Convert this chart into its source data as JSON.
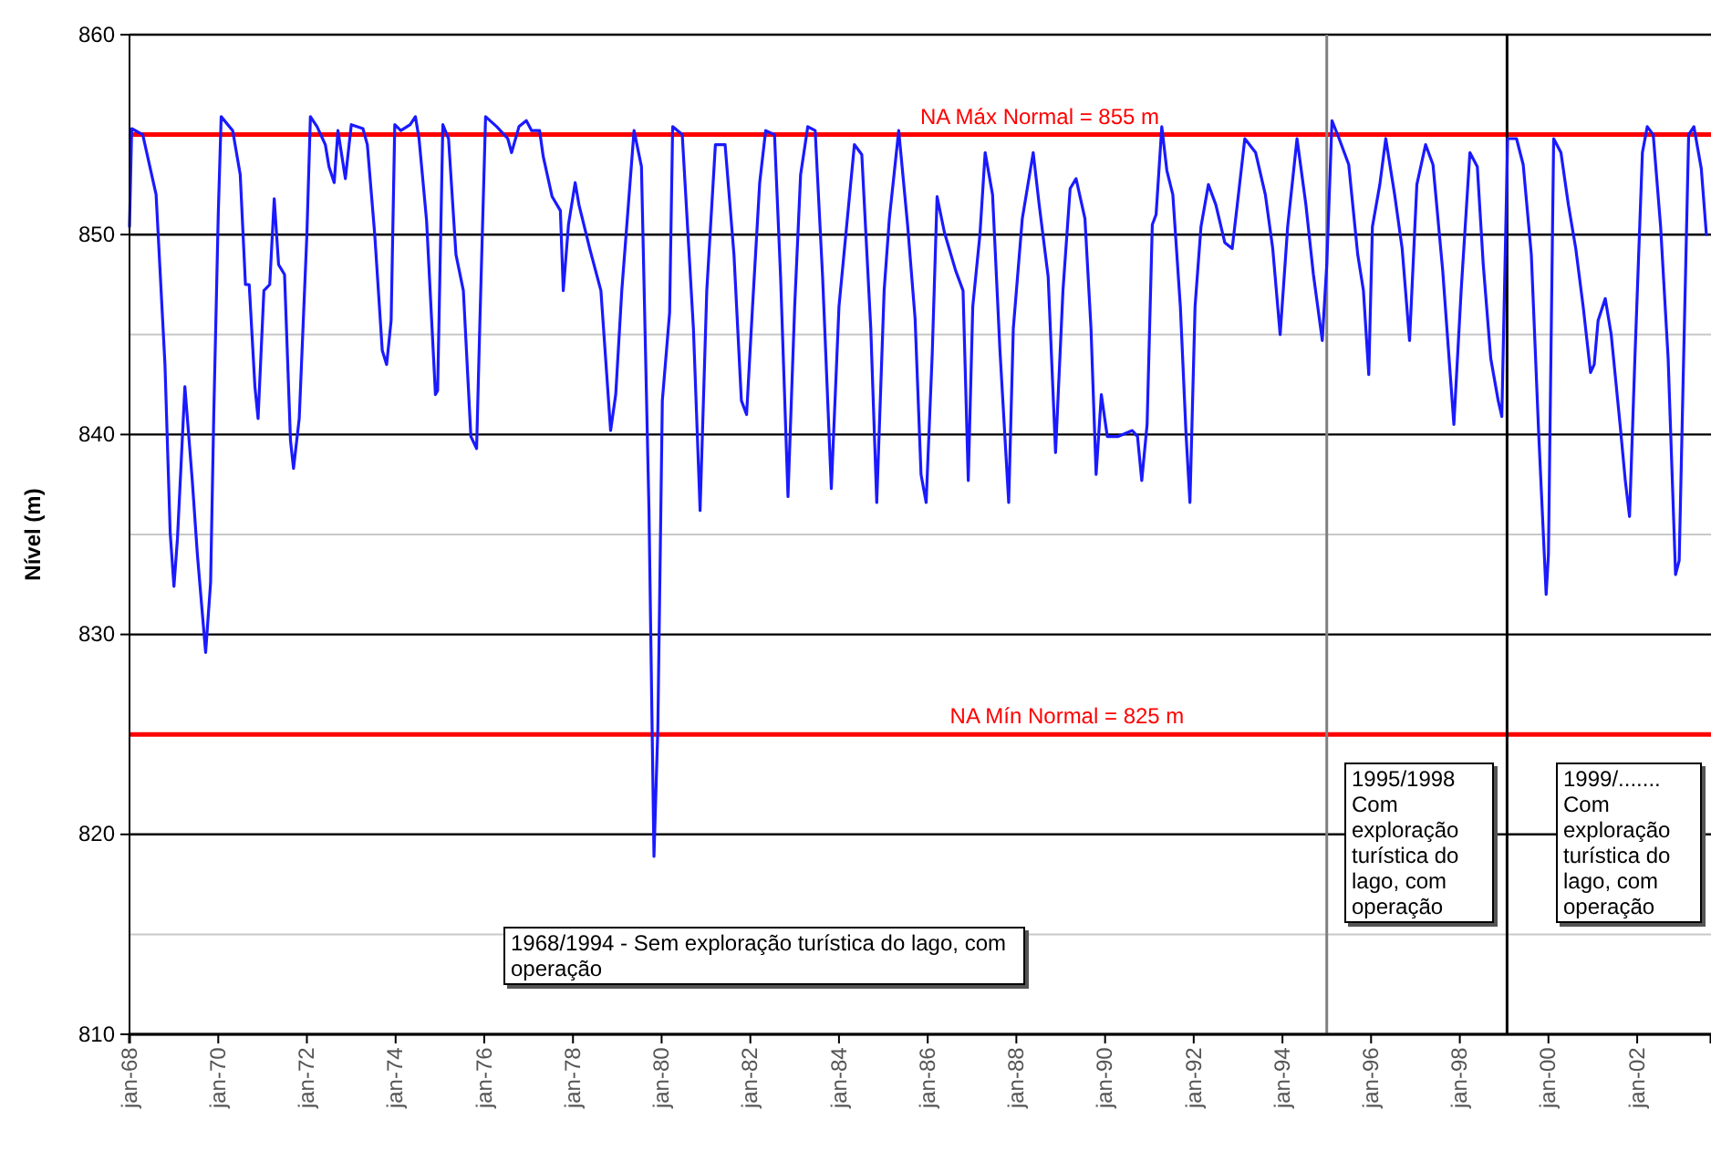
{
  "chart_data": {
    "type": "line",
    "ylabel": "Nível (m)",
    "ylim": [
      810,
      860
    ],
    "yticks": [
      810,
      {
        "value": 815,
        "label": null
      },
      820,
      830,
      {
        "value": 835,
        "label": null
      },
      840,
      {
        "value": 845,
        "label": null
      },
      850,
      860
    ],
    "xlim": [
      "1968-01-01",
      "2003-09-01"
    ],
    "xticks": [
      {
        "value": "1968-01-01",
        "label": "jan-68"
      },
      {
        "value": "1970-01-01",
        "label": "jan-70"
      },
      {
        "value": "1972-01-01",
        "label": "jan-72"
      },
      {
        "value": "1974-01-01",
        "label": "jan-74"
      },
      {
        "value": "1976-01-01",
        "label": "jan-76"
      },
      {
        "value": "1978-01-01",
        "label": "jan-78"
      },
      {
        "value": "1980-01-01",
        "label": "jan-80"
      },
      {
        "value": "1982-01-01",
        "label": "jan-82"
      },
      {
        "value": "1984-01-01",
        "label": "jan-84"
      },
      {
        "value": "1986-01-01",
        "label": "jan-86"
      },
      {
        "value": "1988-01-01",
        "label": "jan-88"
      },
      {
        "value": "1990-01-01",
        "label": "jan-90"
      },
      {
        "value": "1992-01-01",
        "label": "jan-92"
      },
      {
        "value": "1994-01-01",
        "label": "jan-94"
      },
      {
        "value": "1996-01-01",
        "label": "jan-96"
      },
      {
        "value": "1998-01-01",
        "label": "jan-98"
      },
      {
        "value": "2000-01-01",
        "label": "jan-00"
      },
      {
        "value": "2002-01-01",
        "label": "jan-02"
      }
    ],
    "grid": "y",
    "marker": "none",
    "line_style": "solid",
    "ref_lines": [
      {
        "axis": "y",
        "value": 855,
        "label": "NA Máx Normal = 855 m",
        "color": "#ff0000"
      },
      {
        "axis": "y",
        "value": 825,
        "label": "NA Mín Normal = 825 m",
        "color": "#ff0000"
      },
      {
        "axis": "x",
        "value": "1995-01-01",
        "color": "#808080"
      },
      {
        "axis": "x",
        "value": "1999-01-25",
        "color": "#000000"
      }
    ],
    "annotations": [
      "1968/1994 - Sem exploração turística do lago, com operação",
      "1995/1998 Com exploração turística do lago, com operação",
      "1999/....... Com exploração turística do lago, com operação"
    ],
    "series": [
      {
        "color": "#1a1aff",
        "x": [
          "1968-01-01",
          "1968-01-19",
          "1968-04-19",
          "1968-08-07",
          "1968-10-19",
          "1968-12-01",
          "1969-01-01",
          "1969-01-30",
          "1969-04-01",
          "1969-06-01",
          "1969-07-13",
          "1969-09-19",
          "1969-10-30",
          "1969-11-25",
          "1970-01-01",
          "1970-01-25",
          "1970-04-30",
          "1970-07-01",
          "1970-08-13",
          "1970-09-13",
          "1970-10-30",
          "1970-11-25",
          "1971-01-12",
          "1971-03-01",
          "1971-04-07",
          "1971-05-13",
          "1971-07-01",
          "1971-08-19",
          "1971-09-13",
          "1971-10-30",
          "1972-01-01",
          "1972-01-30",
          "1972-03-25",
          "1972-06-01",
          "1972-07-01",
          "1972-08-13",
          "1972-09-13",
          "1972-11-13",
          "1973-01-01",
          "1973-04-07",
          "1973-05-13",
          "1973-07-13",
          "1973-09-13",
          "1973-10-19",
          "1973-11-25",
          "1973-12-25",
          "1974-02-13",
          "1974-05-01",
          "1974-06-13",
          "1974-07-13",
          "1974-09-13",
          "1974-11-25",
          "1974-12-13",
          "1975-01-25",
          "1975-03-13",
          "1975-05-13",
          "1975-07-13",
          "1975-09-13",
          "1975-10-30",
          "1975-11-25",
          "1976-01-12",
          "1976-04-13",
          "1976-07-13",
          "1976-08-13",
          "1976-10-13",
          "1976-12-13",
          "1977-01-25",
          "1977-04-01",
          "1977-05-01",
          "1977-07-13",
          "1977-09-19",
          "1977-10-13",
          "1977-11-25",
          "1978-01-19",
          "1978-02-19",
          "1978-05-19",
          "1978-08-19",
          "1978-11-07",
          "1978-12-19",
          "1979-02-07",
          "1979-05-19",
          "1979-07-19",
          "1979-09-19",
          "1979-10-30",
          "1979-12-01",
          "1980-01-07",
          "1980-03-07",
          "1980-04-01",
          "1980-06-19",
          "1980-09-19",
          "1980-11-13",
          "1981-01-07",
          "1981-03-19",
          "1981-06-07",
          "1981-08-19",
          "1981-10-19",
          "1981-12-01",
          "1982-01-19",
          "1982-03-19",
          "1982-05-07",
          "1982-07-19",
          "1982-09-07",
          "1982-11-07",
          "1983-01-01",
          "1983-02-19",
          "1983-04-19",
          "1983-06-19",
          "1983-08-19",
          "1983-10-30",
          "1984-01-01",
          "1984-05-07",
          "1984-07-07",
          "1984-09-19",
          "1984-11-07",
          "1985-01-07",
          "1985-02-19",
          "1985-05-07",
          "1985-07-19",
          "1985-09-19",
          "1985-11-07",
          "1985-12-19",
          "1986-02-07",
          "1986-03-19",
          "1986-05-19",
          "1986-08-19",
          "1986-10-19",
          "1986-12-01",
          "1987-01-07",
          "1987-03-07",
          "1987-04-19",
          "1987-06-19",
          "1987-08-19",
          "1987-10-30",
          "1987-12-07",
          "1988-02-19",
          "1988-05-19",
          "1988-07-07",
          "1988-09-19",
          "1988-11-19",
          "1989-01-19",
          "1989-03-19",
          "1989-05-07",
          "1989-07-19",
          "1989-09-07",
          "1989-10-19",
          "1989-12-01",
          "1990-01-19",
          "1990-04-19",
          "1990-08-13",
          "1990-09-25",
          "1990-10-30",
          "1990-12-13",
          "1991-01-25",
          "1991-02-25",
          "1991-04-13",
          "1991-05-25",
          "1991-07-13",
          "1991-09-13",
          "1991-10-30",
          "1991-12-01",
          "1992-01-12",
          "1992-03-01",
          "1992-05-01",
          "1992-07-01",
          "1992-09-13",
          "1992-11-13",
          "1992-12-25",
          "1993-02-25",
          "1993-05-25",
          "1993-08-13",
          "1993-10-13",
          "1993-12-13",
          "1994-02-13",
          "1994-05-01",
          "1994-07-13",
          "1994-09-13",
          "1994-11-25",
          "1995-01-01",
          "1995-02-13",
          "1995-04-13",
          "1995-07-01",
          "1995-09-13",
          "1995-10-30",
          "1995-12-13",
          "1996-01-12",
          "1996-03-13",
          "1996-05-01",
          "1996-07-13",
          "1996-09-13",
          "1996-11-13",
          "1997-01-12",
          "1997-03-25",
          "1997-05-25",
          "1997-08-13",
          "1997-11-13",
          "1998-01-12",
          "1998-03-25",
          "1998-05-25",
          "1998-07-13",
          "1998-09-13",
          "1998-11-13",
          "1998-12-13",
          "1999-01-30",
          "1999-04-13",
          "1999-06-07",
          "1999-08-13",
          "1999-10-13",
          "1999-12-13",
          "2000-01-01",
          "2000-02-13",
          "2000-04-13",
          "2000-06-13",
          "2000-08-13",
          "2000-10-13",
          "2000-12-13",
          "2001-01-12",
          "2001-02-13",
          "2001-04-13",
          "2001-06-01",
          "2001-08-13",
          "2001-09-25",
          "2001-10-30",
          "2001-12-13",
          "2002-02-13",
          "2002-03-25",
          "2002-05-13",
          "2002-07-13",
          "2002-09-13",
          "2002-11-13",
          "2002-12-13",
          "2003-01-12",
          "2003-03-01",
          "2003-04-13",
          "2003-06-13",
          "2003-07-25"
        ],
        "values": [
          850.4,
          855.3,
          855,
          852,
          843.5,
          835.1,
          832.4,
          834.8,
          842.4,
          837.7,
          834,
          829.1,
          832.6,
          841,
          851,
          855.9,
          855.2,
          853,
          847.5,
          847.5,
          842.4,
          840.8,
          847.2,
          847.5,
          851.8,
          848.5,
          848,
          839.7,
          838.3,
          840.8,
          850,
          855.9,
          855.4,
          854.5,
          853.4,
          852.6,
          855.2,
          852.8,
          855.5,
          855.3,
          854.5,
          850,
          844.2,
          843.5,
          845.7,
          855.5,
          855.2,
          855.5,
          855.9,
          854.8,
          850.7,
          842,
          842.2,
          855.5,
          854.8,
          849,
          847.2,
          839.9,
          839.3,
          845.4,
          855.9,
          855.4,
          854.8,
          854.1,
          855.4,
          855.7,
          855.2,
          855.2,
          853.9,
          851.9,
          851.2,
          847.2,
          850.5,
          852.6,
          851.5,
          849.3,
          847.2,
          840.2,
          842,
          847.2,
          855.2,
          853.4,
          836.2,
          818.9,
          825.3,
          841.7,
          846.1,
          855.4,
          855,
          845.3,
          836.2,
          847.2,
          854.5,
          854.5,
          849,
          841.7,
          841,
          846.4,
          852.6,
          855.2,
          855,
          847.9,
          836.9,
          846.4,
          853,
          855.4,
          855.2,
          847.9,
          837.3,
          846.4,
          854.5,
          854,
          845.3,
          836.6,
          847.2,
          850.8,
          855.2,
          850.5,
          845.8,
          838,
          836.6,
          844,
          851.9,
          850.1,
          848.2,
          847.2,
          837.7,
          846.4,
          850,
          854.1,
          852,
          844.2,
          836.6,
          845.3,
          850.8,
          854.1,
          851.5,
          847.9,
          839.1,
          847.2,
          852.3,
          852.8,
          850.8,
          845.3,
          838,
          842,
          839.9,
          839.9,
          840.2,
          839.9,
          837.7,
          840.5,
          850.5,
          851,
          855.4,
          853.2,
          852,
          846.4,
          840,
          836.6,
          846.4,
          850.4,
          852.5,
          851.5,
          849.6,
          849.3,
          851.5,
          854.8,
          854.1,
          852,
          849.3,
          845,
          850.4,
          854.8,
          851.5,
          848,
          844.7,
          848.5,
          855.7,
          854.8,
          853.5,
          849,
          847.2,
          843,
          850.4,
          852.5,
          854.8,
          852,
          849.3,
          844.7,
          852.5,
          854.5,
          853.5,
          848.2,
          840.5,
          847.2,
          854.1,
          853.4,
          848.5,
          843.8,
          841.7,
          840.9,
          854.8,
          854.8,
          853.5,
          849,
          840,
          832,
          834,
          854.8,
          854.1,
          851.5,
          849.3,
          846.4,
          843.1,
          843.5,
          845.7,
          846.8,
          845,
          840.5,
          837.7,
          835.9,
          843.8,
          854.1,
          855.4,
          855,
          850.4,
          843.8,
          833,
          833.7,
          842,
          855,
          855.4,
          853.3,
          850
        ]
      }
    ]
  }
}
